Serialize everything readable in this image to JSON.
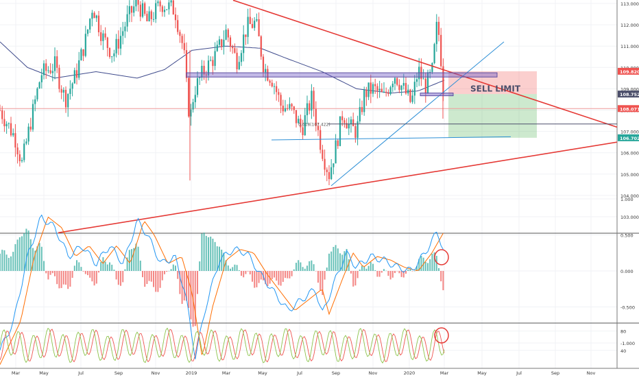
{
  "chart_data": {
    "type": "candlestick",
    "price_axis": {
      "ticks": [
        "113.000",
        "112.000",
        "111.000",
        "110.000",
        "109.000",
        "108.000",
        "107.000",
        "106.000",
        "105.000",
        "104.000",
        "103.000"
      ],
      "range": [
        102.25,
        113.4
      ]
    },
    "macd_axis": {
      "ticks": [
        "1.000",
        "0.500",
        "0.000",
        "-0.500",
        "-1.000"
      ],
      "range": [
        -1.4,
        1.0
      ]
    },
    "stoch_axis": {
      "ticks": [
        "80",
        "40"
      ],
      "range": [
        0,
        100
      ]
    },
    "time_axis": {
      "labels": [
        "Mar",
        "May",
        "Jul",
        "Sep",
        "Nov",
        "2019",
        "Mar",
        "May",
        "Jul",
        "Sep",
        "Nov",
        "2020",
        "Mar",
        "May",
        "Jul",
        "Sep",
        "Nov"
      ]
    },
    "price_badges": [
      {
        "label": "109.820",
        "value": 109.82,
        "color": "#ef5350"
      },
      {
        "label": "108.752",
        "value": 108.752,
        "color": "#4c4f6b"
      },
      {
        "label": "108.071",
        "value": 108.071,
        "color": "#ef5350"
      },
      {
        "label": "106.702",
        "value": 106.702,
        "color": "#26a69a"
      }
    ],
    "annotations": {
      "fib_label": "0.618(107.422)",
      "sell_limit": "SELL LIMIT"
    },
    "colors": {
      "up": "#26a69a",
      "down": "#ef5350",
      "trendline": "#e53935",
      "blue_line": "#2d8fd6",
      "ma": "#3f4b8c",
      "macd": "#2196f3",
      "signal": "#ff6d00",
      "stoch_k": "#8bc34a",
      "stoch_d": "#ef5350"
    }
  }
}
